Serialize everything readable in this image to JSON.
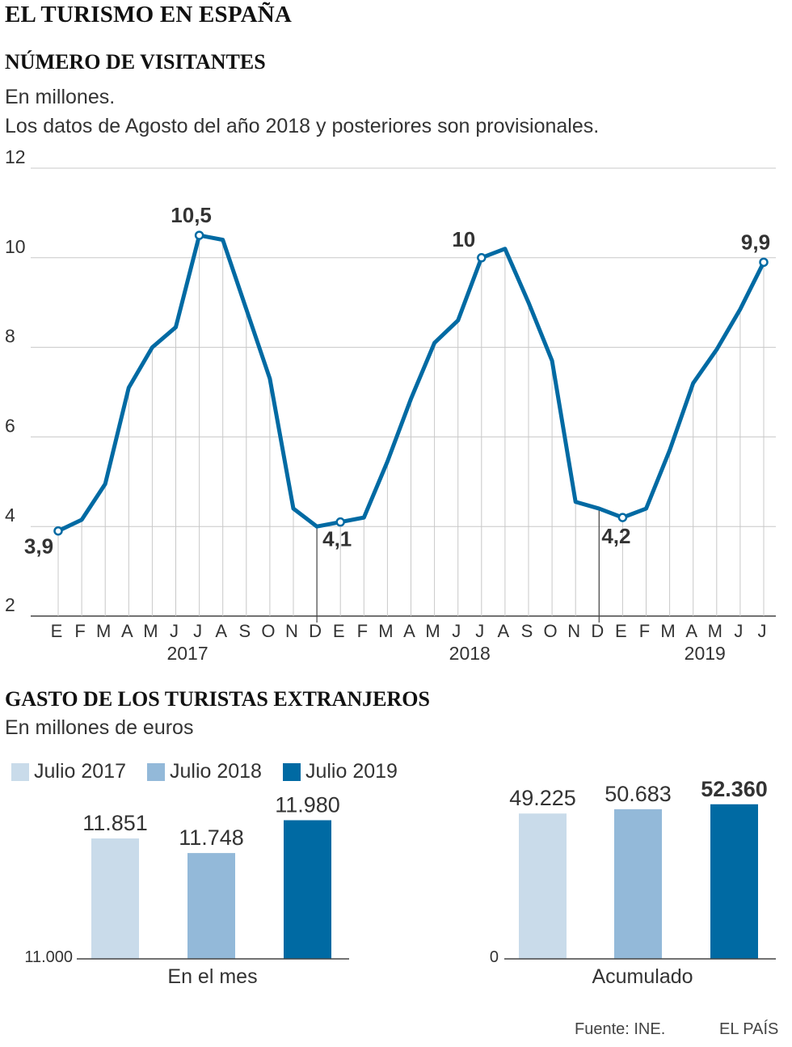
{
  "title": "EL TURISMO EN ESPAÑA",
  "source": "Fuente: INE.",
  "brand": "EL PAÍS",
  "chart_data": [
    {
      "type": "line",
      "title": "NÚMERO DE VISITANTES",
      "subtitle": "En millones.",
      "note": "Los datos de Agosto del año 2018 y posteriores son provisionales.",
      "ylim": [
        2,
        12
      ],
      "yticks": [
        "2",
        "4",
        "6",
        "8",
        "10",
        "12"
      ],
      "month_labels": [
        "E",
        "F",
        "M",
        "A",
        "M",
        "J",
        "J",
        "A",
        "S",
        "O",
        "N",
        "D",
        "E",
        "F",
        "M",
        "A",
        "M",
        "J",
        "J",
        "A",
        "S",
        "O",
        "N",
        "D",
        "E",
        "F",
        "M",
        "A",
        "M",
        "J",
        "J"
      ],
      "years": [
        "2017",
        "2018",
        "2019"
      ],
      "color": "#006aa3",
      "values": [
        3.9,
        4.15,
        4.95,
        7.1,
        8.0,
        8.45,
        10.5,
        10.4,
        8.85,
        7.3,
        4.4,
        4.0,
        4.1,
        4.2,
        5.45,
        6.85,
        8.1,
        8.6,
        10.0,
        10.2,
        9.0,
        7.7,
        4.55,
        4.4,
        4.2,
        4.4,
        5.7,
        7.2,
        7.95,
        8.85,
        9.9
      ],
      "annotations": [
        {
          "index": 0,
          "label": "3,9"
        },
        {
          "index": 6,
          "label": "10,5"
        },
        {
          "index": 12,
          "label": "4,1"
        },
        {
          "index": 18,
          "label": "10"
        },
        {
          "index": 24,
          "label": "4,2"
        },
        {
          "index": 30,
          "label": "9,9"
        }
      ]
    },
    {
      "type": "bar",
      "title": "GASTO DE LOS TURISTAS EXTRANJEROS",
      "subtitle": "En millones de euros",
      "legend": [
        "Julio 2017",
        "Julio 2018",
        "Julio 2019"
      ],
      "colors": [
        "#c9dbea",
        "#93b9d9",
        "#006aa3"
      ],
      "groups": [
        {
          "name": "En el mes",
          "baseline_label": "11.000",
          "ylim": [
            11000,
            12200
          ],
          "values": [
            11851,
            11748,
            11980
          ],
          "labels": [
            "11.851",
            "11.748",
            "11.980"
          ]
        },
        {
          "name": "Acumulado",
          "baseline_label": "0",
          "ylim": [
            0,
            57500
          ],
          "values": [
            49225,
            50683,
            52360
          ],
          "labels": [
            "49.225",
            "50.683",
            "52.360"
          ]
        }
      ]
    }
  ]
}
